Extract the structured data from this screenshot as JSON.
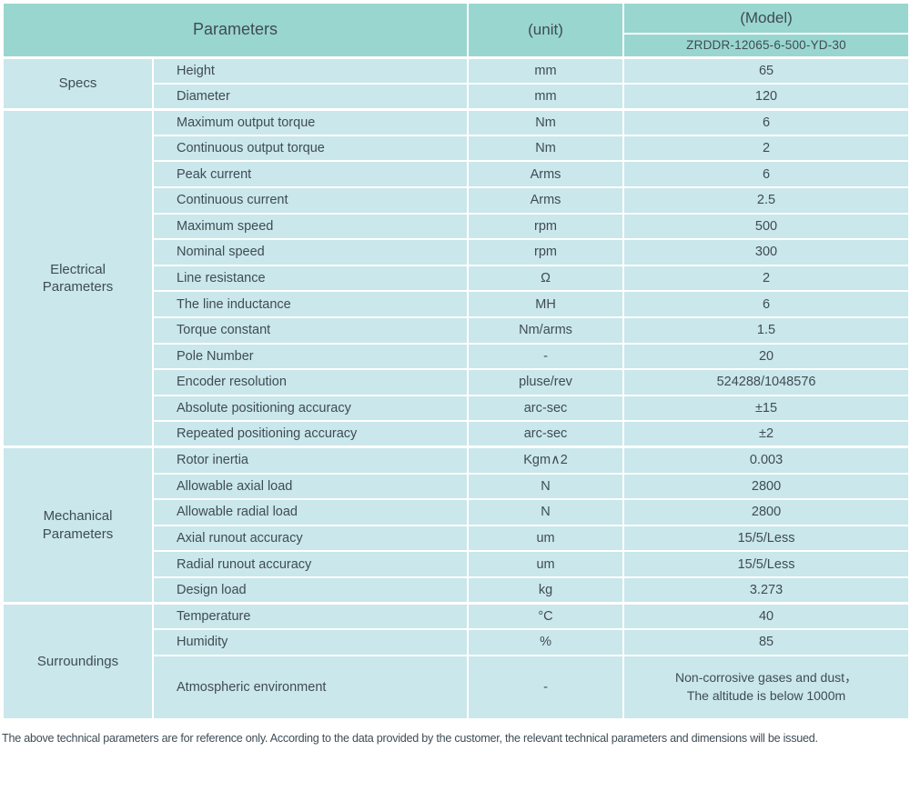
{
  "header": {
    "parameters_label": "Parameters",
    "unit_label": "(unit)",
    "model_label": "(Model)",
    "model_value": "ZRDDR-12065-6-500-YD-30"
  },
  "sections": [
    {
      "id": "specs",
      "name": "Specs",
      "rows": [
        {
          "param": "Height",
          "unit": "mm",
          "value": "65"
        },
        {
          "param": "Diameter",
          "unit": "mm",
          "value": "120"
        }
      ]
    },
    {
      "id": "electrical-parameters",
      "name": "Electrical Parameters",
      "rows": [
        {
          "param": "Maximum output torque",
          "unit": "Nm",
          "value": "6"
        },
        {
          "param": "Continuous output torque",
          "unit": "Nm",
          "value": "2"
        },
        {
          "param": "Peak current",
          "unit": "Arms",
          "value": "6"
        },
        {
          "param": "Continuous current",
          "unit": "Arms",
          "value": "2.5"
        },
        {
          "param": "Maximum speed",
          "unit": "rpm",
          "value": "500"
        },
        {
          "param": "Nominal speed",
          "unit": "rpm",
          "value": "300"
        },
        {
          "param": "Line resistance",
          "unit": "Ω",
          "value": "2"
        },
        {
          "param": "The line inductance",
          "unit": "MH",
          "value": "6"
        },
        {
          "param": "Torque constant",
          "unit": "Nm/arms",
          "value": "1.5"
        },
        {
          "param": "Pole Number",
          "unit": "-",
          "value": "20"
        },
        {
          "param": "Encoder resolution",
          "unit": "pluse/rev",
          "value": "524288/1048576"
        },
        {
          "param": "Absolute positioning accuracy",
          "unit": "arc-sec",
          "value": "±15"
        },
        {
          "param": "Repeated positioning accuracy",
          "unit": "arc-sec",
          "value": "±2"
        }
      ]
    },
    {
      "id": "mechanical-parameters",
      "name": "Mechanical Parameters",
      "rows": [
        {
          "param": "Rotor inertia",
          "unit": "Kgm∧2",
          "value": "0.003"
        },
        {
          "param": "Allowable axial load",
          "unit": "N",
          "value": "2800"
        },
        {
          "param": "Allowable radial load",
          "unit": "N",
          "value": "2800"
        },
        {
          "param": "Axial runout accuracy",
          "unit": "um",
          "value": "15/5/Less"
        },
        {
          "param": "Radial runout accuracy",
          "unit": "um",
          "value": "15/5/Less"
        },
        {
          "param": "Design load",
          "unit": "kg",
          "value": "3.273"
        }
      ]
    },
    {
      "id": "surroundings",
      "name": "Surroundings",
      "rows": [
        {
          "param": "Temperature",
          "unit": "°C",
          "value": "40"
        },
        {
          "param": "Humidity",
          "unit": "%",
          "value": "85"
        },
        {
          "param": "Atmospheric environment",
          "unit": "-",
          "value": "Non-corrosive gases and dust，",
          "value2": "The altitude is below 1000m",
          "tall": true
        }
      ]
    }
  ],
  "footer": {
    "note": "The above technical parameters are for reference only. According to the data provided by the customer, the relevant technical parameters and dimensions will be issued."
  },
  "colors": {
    "header_bg": "#99d6cf",
    "row_bg": "#cae7eb",
    "border": "#ffffff",
    "text": "#3f4c54"
  }
}
